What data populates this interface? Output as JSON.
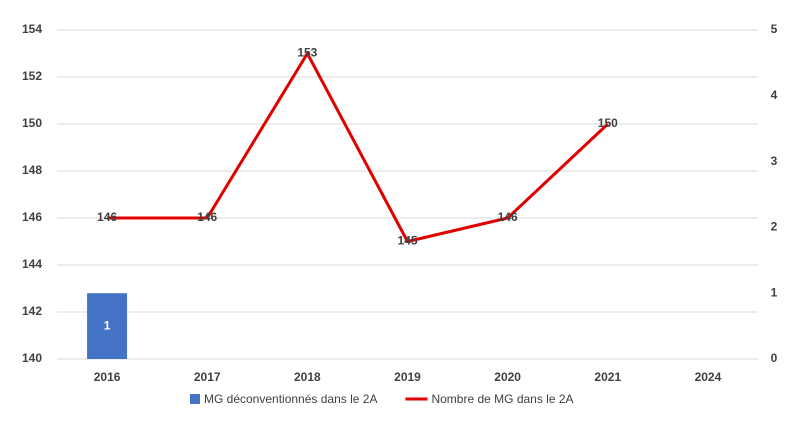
{
  "chart_data": {
    "type": "bar-line",
    "categories": [
      "2016",
      "2017",
      "2018",
      "2019",
      "2020",
      "2021",
      "2024"
    ],
    "series": [
      {
        "name": "MG déconventionnés dans le 2A",
        "type": "bar",
        "axis": "y2",
        "color": "#4472c4",
        "values": [
          1,
          null,
          null,
          null,
          null,
          null,
          null
        ]
      },
      {
        "name": "Nombre de MG dans le 2A",
        "type": "line",
        "axis": "y",
        "color": "#e00000",
        "values": [
          146,
          146,
          153,
          145,
          146,
          150,
          null
        ]
      }
    ],
    "ylim": [
      140,
      154
    ],
    "yticks": [
      140,
      142,
      144,
      146,
      148,
      150,
      152,
      154
    ],
    "y2lim": [
      0,
      5
    ],
    "y2ticks": [
      0,
      1,
      2,
      3,
      4,
      5
    ],
    "grid": true,
    "legend": "bottom"
  }
}
